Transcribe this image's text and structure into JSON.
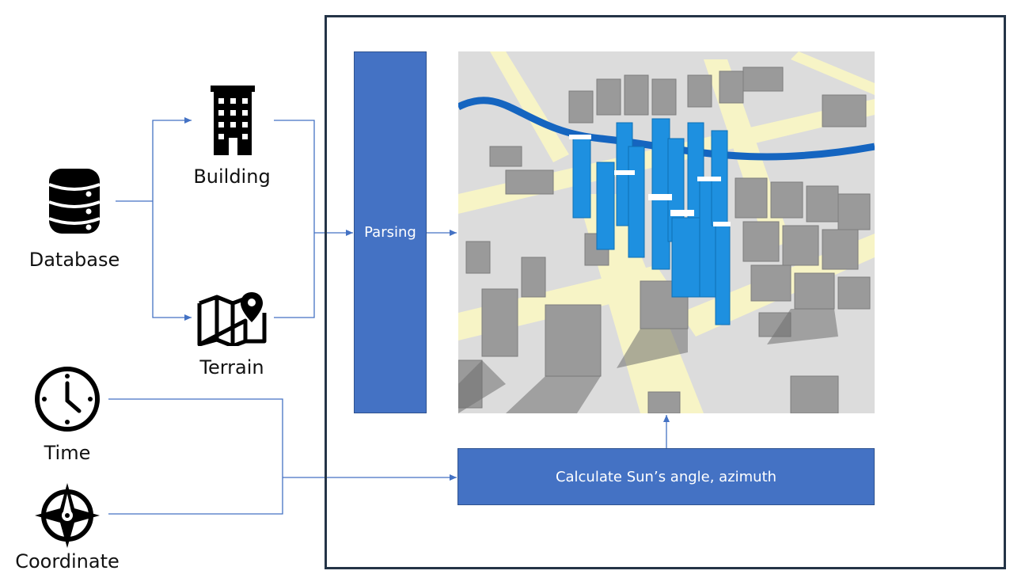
{
  "inputs": {
    "database_label": "Database",
    "building_label": "Building",
    "terrain_label": "Terrain",
    "time_label": "Time",
    "coordinate_label": "Coordinate"
  },
  "process": {
    "parsing_label": "Parsing",
    "sun_label": "Calculate Sun’s angle, azimuth"
  },
  "icons": {
    "database": "database-icon",
    "building": "building-icon",
    "terrain": "map-pin-icon",
    "time": "clock-icon",
    "coordinate": "compass-icon",
    "scene": "3d-city-render"
  },
  "colors": {
    "box_fill": "#4472c4",
    "box_border": "#2f528f",
    "arrow": "#4472c4",
    "frame": "#243447",
    "river": "#1565c0",
    "road": "#f7f4c6",
    "building_highlight": "#1e90e0",
    "building_gray": "#9a9a9a"
  }
}
